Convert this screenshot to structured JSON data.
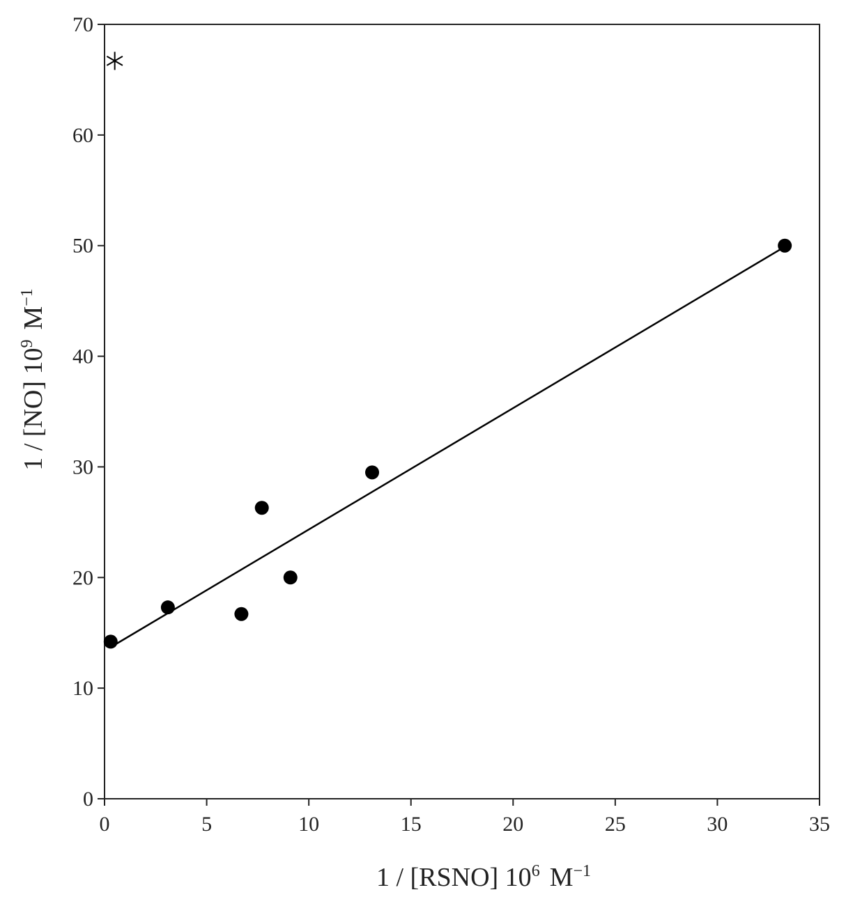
{
  "chart_data": {
    "type": "scatter",
    "xlabel": {
      "base": "1 / [RSNO] 10",
      "exp": "6",
      "unit": "M",
      "unit_exp": "−1"
    },
    "ylabel": {
      "base": "1 / [NO] 10",
      "exp": "9",
      "unit": "M",
      "unit_exp": "−1"
    },
    "xlim": [
      0,
      35
    ],
    "ylim": [
      0,
      70
    ],
    "xticks": [
      0,
      5,
      10,
      15,
      20,
      25,
      30,
      35
    ],
    "yticks": [
      0,
      10,
      20,
      30,
      40,
      50,
      60,
      70
    ],
    "grid": false,
    "series": [
      {
        "marker": "filled-circle",
        "points": [
          {
            "x": 0.3,
            "y": 14.2
          },
          {
            "x": 3.1,
            "y": 17.3
          },
          {
            "x": 6.7,
            "y": 16.7
          },
          {
            "x": 7.7,
            "y": 26.3
          },
          {
            "x": 9.1,
            "y": 20.0
          },
          {
            "x": 13.1,
            "y": 29.5
          },
          {
            "x": 33.3,
            "y": 50.0
          }
        ]
      },
      {
        "marker": "asterisk",
        "points": [
          {
            "x": 0.5,
            "y": 66.7
          }
        ]
      }
    ],
    "fit_line": {
      "x_start": 0.3,
      "y_start": 13.7,
      "x_end": 33.3,
      "y_end": 49.9
    },
    "colors": {
      "marker": "#000000",
      "line": "#000000",
      "axis": "#222222"
    }
  }
}
